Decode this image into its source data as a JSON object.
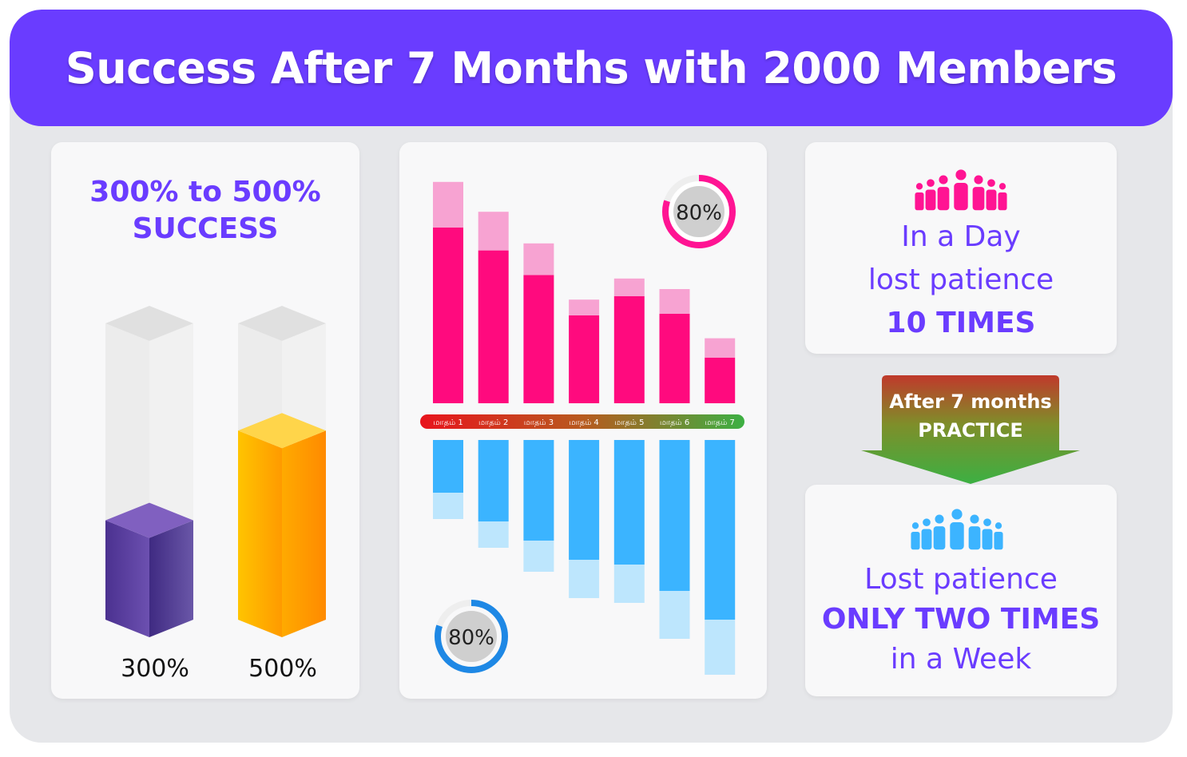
{
  "header": {
    "title": "Success After 7 Months with 2000 Members"
  },
  "left_card": {
    "title_line1": "300% to 500%",
    "title_line2": "SUCCESS",
    "label_a": "300%",
    "label_b": "500%"
  },
  "donut_top": {
    "label": "80%",
    "color": "#ff1493"
  },
  "donut_bottom": {
    "label": "80%",
    "color": "#1e88e5"
  },
  "top_right": {
    "line1": "In a Day",
    "line2": "lost patience",
    "line3": "10 TIMES",
    "icon": "group-people-icon",
    "icon_color": "#ff1493"
  },
  "arrow": {
    "line1": "After 7 months",
    "line2": "PRACTICE"
  },
  "bottom_right": {
    "line1": "Lost patience",
    "line2": "ONLY TWO TIMES",
    "line3": "in a Week",
    "icon": "group-people-icon",
    "icon_color": "#3cb4ff"
  },
  "chart_data": [
    {
      "type": "bar",
      "categories": [
        "300%",
        "500%"
      ],
      "values": [
        300,
        500
      ],
      "title": "300% to 500% SUCCESS",
      "ylim": [
        0,
        700
      ],
      "colors": [
        "#5a3d9e",
        "#ffa000"
      ]
    },
    {
      "type": "bar",
      "categories": [
        "மாதம் 1",
        "மாதம் 2",
        "மாதம் 3",
        "மாதம் 4",
        "மாதம் 5",
        "மாதம் 6",
        "மாதம் 7"
      ],
      "series": [
        {
          "values": [
            100,
            87,
            73,
            50,
            61,
            51,
            26
          ],
          "color": "#ff0a7e"
        },
        {
          "values": [
            26,
            22,
            18,
            9,
            10,
            14,
            11
          ],
          "color": "#f7a3d2"
        },
        {
          "values": [
            22,
            34,
            42,
            50,
            52,
            63,
            75
          ],
          "color": "#3bb4ff"
        },
        {
          "values": [
            11,
            11,
            13,
            16,
            16,
            20,
            23
          ],
          "color": "#bde6fd"
        }
      ],
      "axis_gradient": [
        "#e8141d",
        "#3cb043"
      ]
    }
  ]
}
